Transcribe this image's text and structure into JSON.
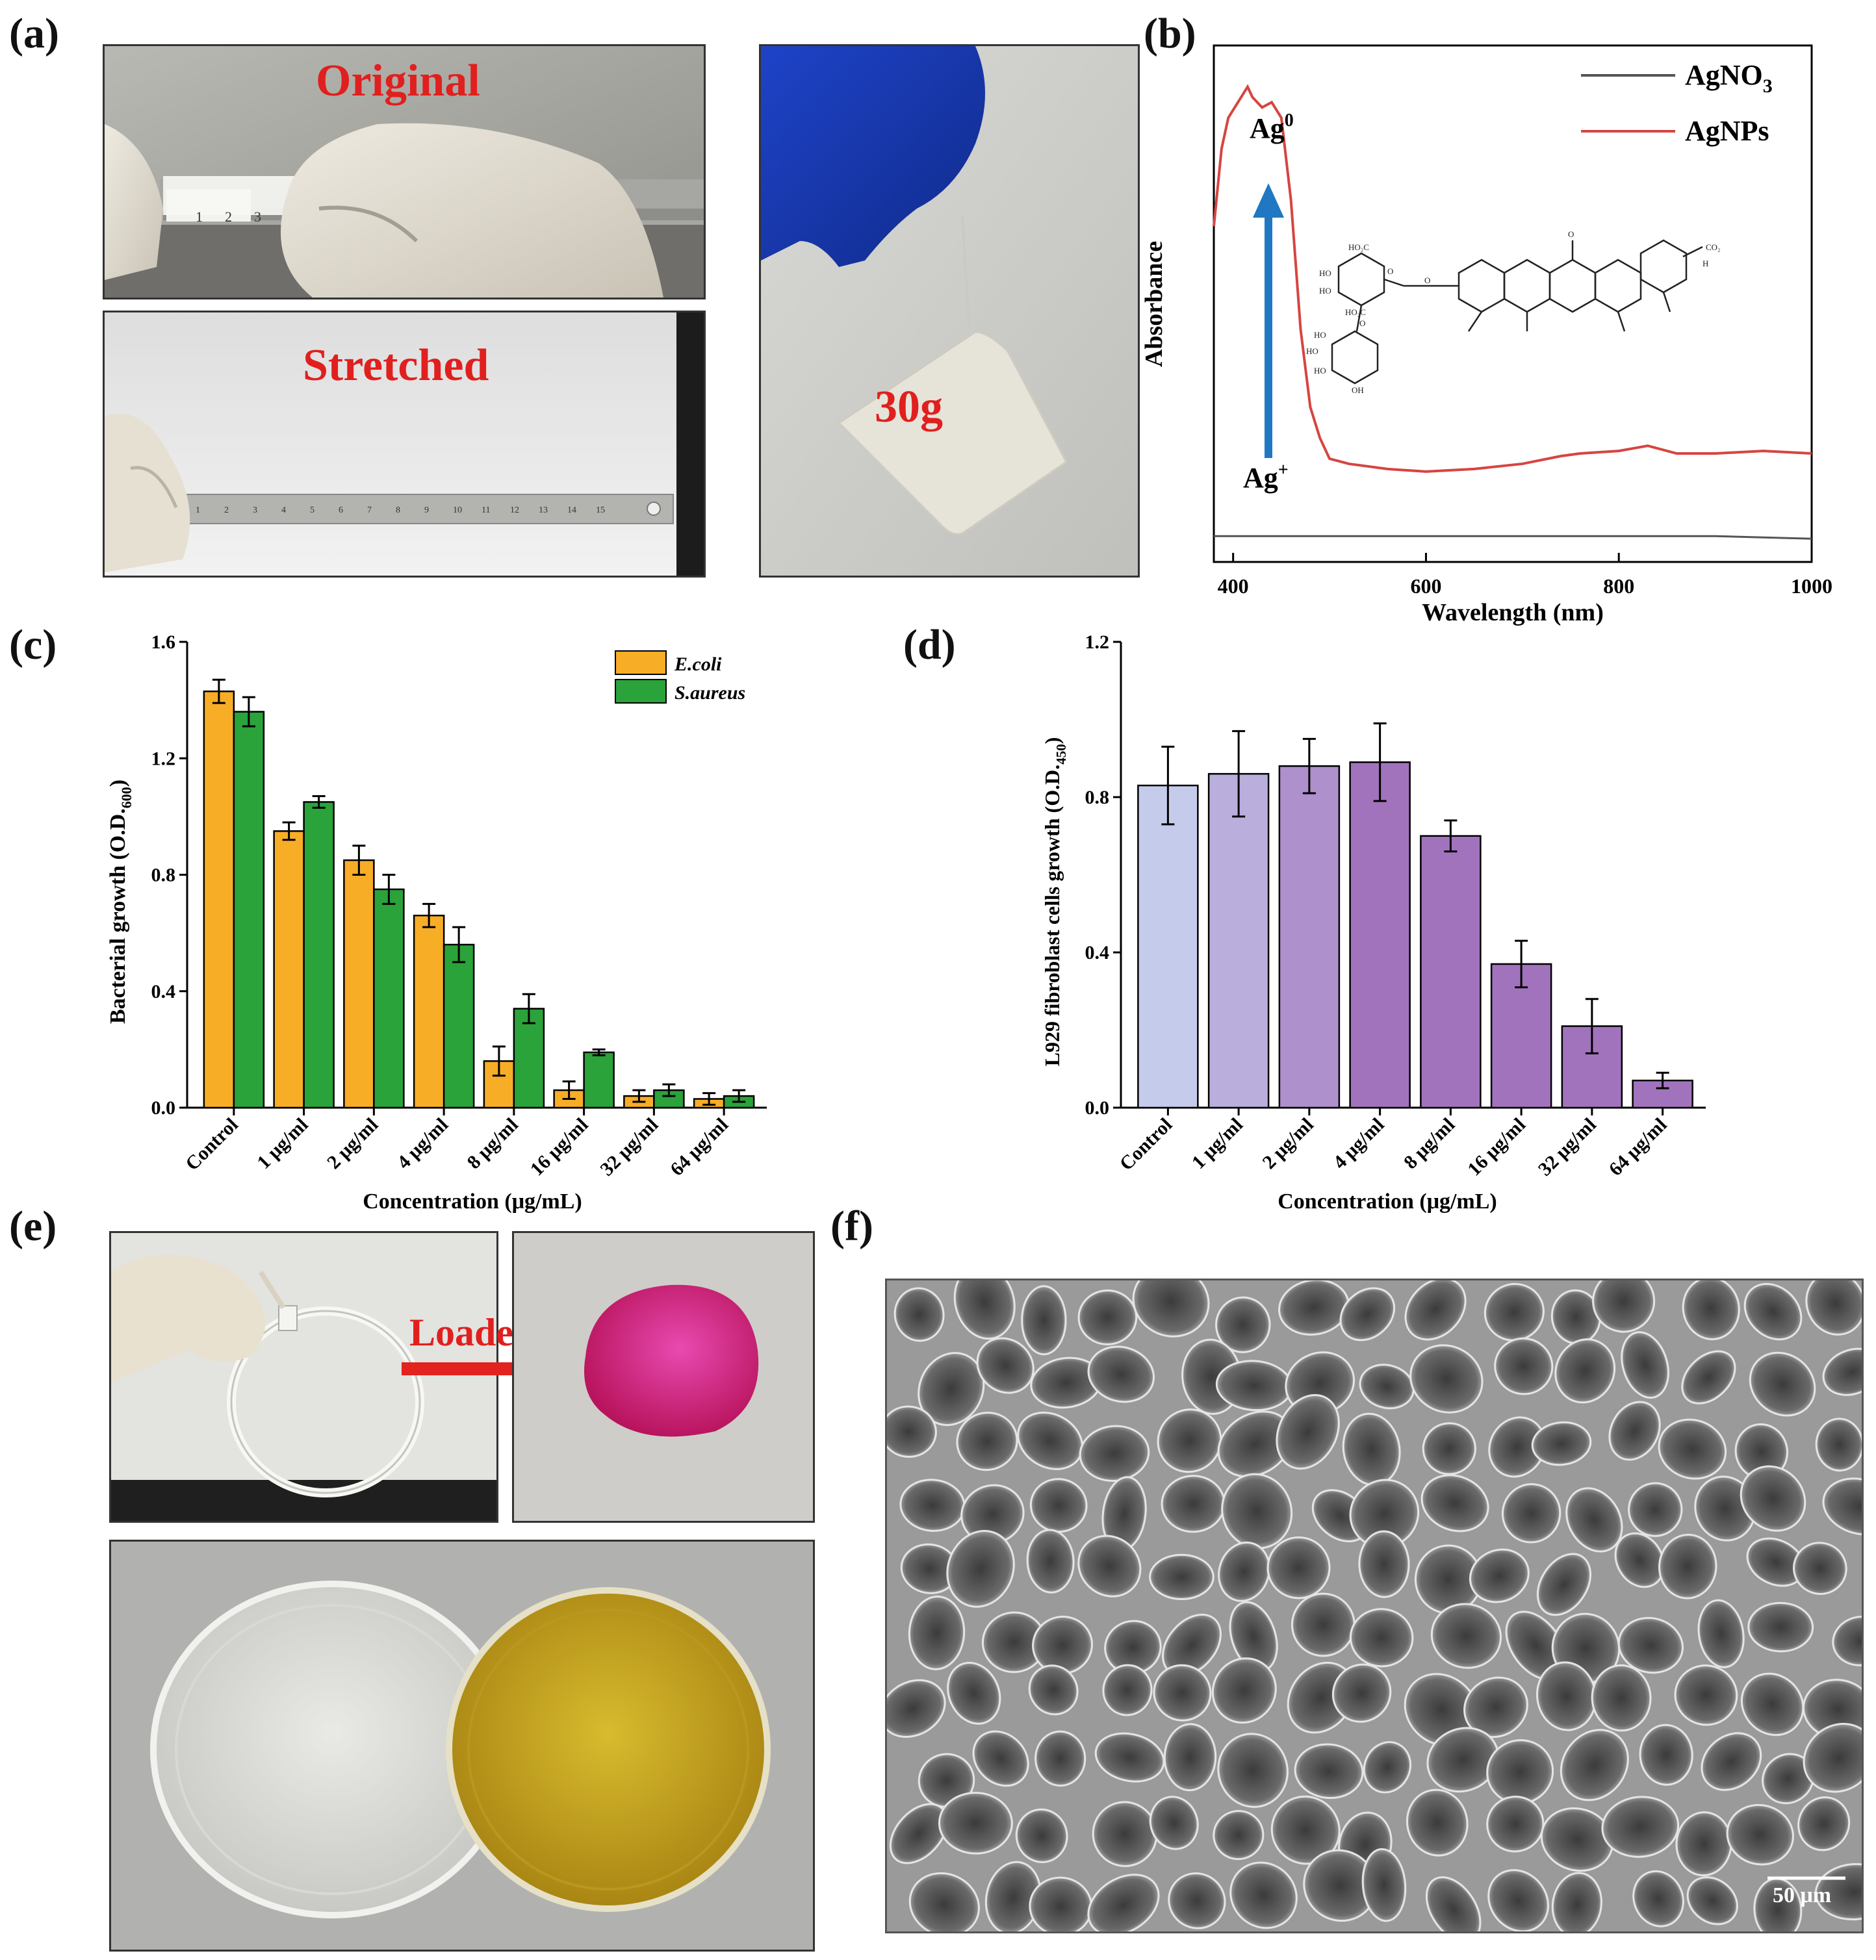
{
  "panels": {
    "a": {
      "label": "(a)",
      "original_text": "Original",
      "stretched_text": "Stretched",
      "weight_text": "30g",
      "ruler_top_digits": [
        "1",
        "2",
        "3"
      ],
      "ruler_bottom_digits": [
        "1",
        "2",
        "3",
        "4",
        "5",
        "6",
        "7",
        "8",
        "9",
        "10",
        "11",
        "12",
        "13",
        "14",
        "15"
      ]
    },
    "b": {
      "label": "(b)"
    },
    "c": {
      "label": "(c)"
    },
    "d": {
      "label": "(d)"
    },
    "e": {
      "label": "(e)",
      "loaded_text": "Loaded"
    },
    "f": {
      "label": "(f)",
      "scalebar_text": "50 μm"
    }
  },
  "colors": {
    "ecoli": "#f8ad27",
    "saureus": "#2aa33a",
    "agno3": "#555555",
    "agnps": "#d64541",
    "arrow_blue": "#1f78c1",
    "l929_bar_start": "#c5cbeb",
    "l929_bar_end": "#a273bd",
    "label_red": "#e0201e",
    "magenta": "#d81b7a",
    "yellow_dish": "#c9a21f"
  },
  "chart_data": [
    {
      "id": "b",
      "type": "line",
      "xlabel": "Wavelength (nm)",
      "ylabel": "Absorbance",
      "xlim": [
        380,
        1000
      ],
      "xticks": [
        400,
        600,
        800,
        1000
      ],
      "legend_position": "top-right",
      "annotations": {
        "top": "Ag",
        "top_sup": "0",
        "bottom": "Ag",
        "bottom_sup": "+"
      },
      "structure_labels": [
        "HO₂C",
        "HO",
        "HO",
        "HO₂C",
        "HO",
        "HO",
        "HO",
        "OH",
        "O",
        "O",
        "O",
        "O",
        "CO₂",
        "H"
      ],
      "series": [
        {
          "name": "AgNO3",
          "name_main": "AgNO",
          "name_sub": "3",
          "x": [
            380,
            500,
            700,
            900,
            1000
          ],
          "y": [
            0.05,
            0.05,
            0.05,
            0.05,
            0.045
          ]
        },
        {
          "name": "AgNPs",
          "x": [
            380,
            388,
            395,
            405,
            415,
            420,
            430,
            440,
            450,
            460,
            470,
            480,
            490,
            500,
            520,
            560,
            600,
            650,
            700,
            740,
            760,
            800,
            830,
            860,
            900,
            950,
            1000
          ],
          "y": [
            0.65,
            0.8,
            0.86,
            0.89,
            0.92,
            0.9,
            0.88,
            0.89,
            0.86,
            0.7,
            0.45,
            0.3,
            0.24,
            0.2,
            0.19,
            0.18,
            0.175,
            0.18,
            0.19,
            0.205,
            0.21,
            0.215,
            0.225,
            0.21,
            0.21,
            0.215,
            0.21
          ]
        }
      ]
    },
    {
      "id": "c",
      "type": "bar",
      "xlabel": "Concentration (μg/mL)",
      "ylabel": "Bacterial growth (O.D.",
      "ylabel_sub": "600",
      "ylabel_end": ")",
      "ylim": [
        0,
        1.6
      ],
      "yticks": [
        "0.0",
        "0.4",
        "0.8",
        "1.2",
        "1.6"
      ],
      "legend_position": "top-right",
      "categories": [
        "Control",
        "1 μg/ml",
        "2 μg/ml",
        "4 μg/ml",
        "8 μg/ml",
        "16 μg/ml",
        "32 μg/ml",
        "64 μg/ml"
      ],
      "series": [
        {
          "name": "E.coli",
          "values": [
            1.43,
            0.95,
            0.85,
            0.66,
            0.16,
            0.06,
            0.04,
            0.03
          ],
          "errors": [
            0.04,
            0.03,
            0.05,
            0.04,
            0.05,
            0.03,
            0.02,
            0.02
          ]
        },
        {
          "name": "S.aureus",
          "values": [
            1.36,
            1.05,
            0.75,
            0.56,
            0.34,
            0.19,
            0.06,
            0.04
          ],
          "errors": [
            0.05,
            0.02,
            0.05,
            0.06,
            0.05,
            0.01,
            0.02,
            0.02
          ]
        }
      ]
    },
    {
      "id": "d",
      "type": "bar",
      "xlabel": "Concentration (μg/mL)",
      "ylabel": "L929 fibroblast cells growth (O.D.",
      "ylabel_sub": "450",
      "ylabel_end": ")",
      "ylim": [
        0,
        1.2
      ],
      "yticks": [
        "0.0",
        "0.4",
        "0.8",
        "1.2"
      ],
      "categories": [
        "Control",
        "1 μg/ml",
        "2 μg/ml",
        "4 μg/ml",
        "8 μg/ml",
        "16 μg/ml",
        "32 μg/ml",
        "64 μg/ml"
      ],
      "values": [
        0.83,
        0.86,
        0.88,
        0.89,
        0.7,
        0.37,
        0.21,
        0.07
      ],
      "errors": [
        0.1,
        0.11,
        0.07,
        0.1,
        0.04,
        0.06,
        0.07,
        0.02
      ]
    }
  ]
}
